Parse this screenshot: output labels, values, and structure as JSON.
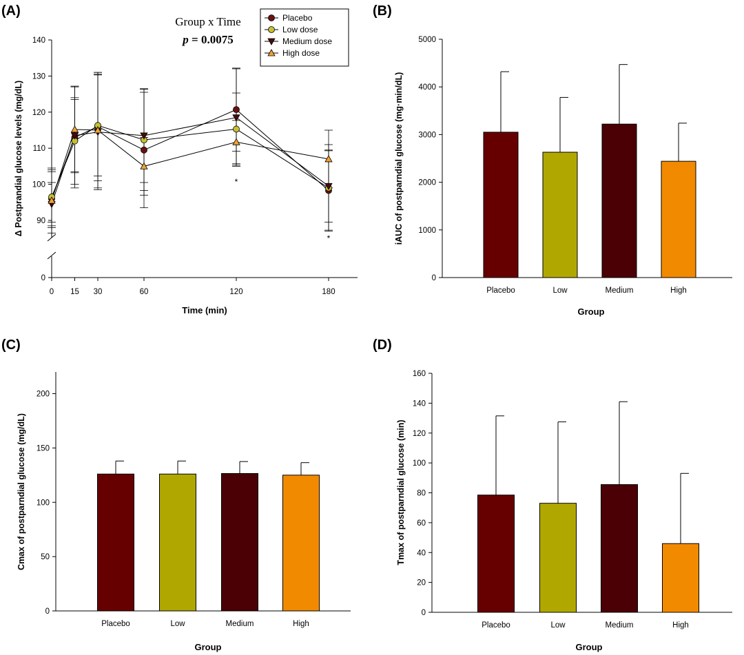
{
  "colors": {
    "placebo": "#660000",
    "low": "#b0a800",
    "medium": "#4a0005",
    "high": "#f28a00",
    "placebo_marker": "#6b1010",
    "low_marker": "#c4c034",
    "medium_marker": "#4a0a0a",
    "high_marker": "#f4a030"
  },
  "chart_data": [
    {
      "id": "A",
      "panel_label": "(A)",
      "type": "line",
      "annotation_line1": "Group x Time",
      "annotation_p": "p",
      "annotation_eq": " = 0.0075",
      "xlabel": "Time (min)",
      "ylabel": "Δ Postprandial glucose levels (mg/dL)",
      "x": [
        0,
        15,
        30,
        60,
        120,
        180
      ],
      "x_tick_labels": [
        "0",
        "15",
        "30",
        "60",
        "120",
        "180"
      ],
      "y_ticks": [
        90,
        100,
        110,
        120,
        130,
        140
      ],
      "y_tick_labels": [
        "90",
        "100",
        "110",
        "120",
        "130",
        "140"
      ],
      "y_break_label": "0",
      "ylim": [
        85,
        140
      ],
      "series": [
        {
          "name": "Placebo",
          "marker": "circle",
          "values": [
            96,
            113,
            116,
            109.5,
            120.7,
            98.3
          ],
          "err": [
            8,
            14,
            15,
            16,
            11.5,
            11
          ]
        },
        {
          "name": "Low dose",
          "marker": "circle",
          "values": [
            96.5,
            112,
            116.3,
            112.3,
            115.3,
            99
          ],
          "err": [
            7,
            12,
            14,
            14,
            10,
            12
          ]
        },
        {
          "name": "Medium dose",
          "marker": "triangle-down",
          "values": [
            94.5,
            113.5,
            114.5,
            113.5,
            118.5,
            99.5
          ],
          "err": [
            6,
            10,
            16,
            13,
            13.5,
            10
          ]
        },
        {
          "name": "High dose",
          "marker": "triangle-up",
          "values": [
            95.5,
            115.2,
            115,
            105,
            111.7,
            107
          ],
          "err": [
            9,
            12,
            16,
            8,
            6,
            8
          ]
        }
      ],
      "significance": [
        {
          "x": 120,
          "label": "*"
        },
        {
          "x": 180,
          "label": "*"
        }
      ]
    },
    {
      "id": "B",
      "panel_label": "(B)",
      "type": "bar",
      "categories": [
        "Placebo",
        "Low",
        "Medium",
        "High"
      ],
      "values": [
        3050,
        2630,
        3220,
        2440
      ],
      "errors": [
        1270,
        1150,
        1250,
        800
      ],
      "xlabel": "Group",
      "ylabel": "iAUC of postparndial glucose (mg·min/dL)",
      "ylim": [
        0,
        5000
      ],
      "y_ticks": [
        0,
        1000,
        2000,
        3000,
        4000,
        5000
      ],
      "y_tick_labels": [
        "0",
        "1000",
        "2000",
        "3000",
        "4000",
        "5000"
      ]
    },
    {
      "id": "C",
      "panel_label": "(C)",
      "type": "bar",
      "categories": [
        "Placebo",
        "Low",
        "Medium",
        "High"
      ],
      "values": [
        126,
        126,
        126.5,
        125
      ],
      "errors": [
        12,
        12,
        11,
        11.5
      ],
      "xlabel": "Group",
      "ylabel": "Cmax of postparndial glucose (mg/dL)",
      "ylim": [
        0,
        220
      ],
      "y_ticks": [
        0,
        50,
        100,
        150,
        200
      ],
      "y_tick_labels": [
        "0",
        "50",
        "100",
        "150",
        "200"
      ]
    },
    {
      "id": "D",
      "panel_label": "(D)",
      "type": "bar",
      "categories": [
        "Placebo",
        "Low",
        "Medium",
        "High"
      ],
      "values": [
        78.5,
        73,
        85.5,
        46
      ],
      "errors": [
        53,
        54.5,
        55.5,
        47
      ],
      "xlabel": "Group",
      "ylabel": "Tmax of postparndial glucose (min)",
      "ylim": [
        0,
        160
      ],
      "y_ticks": [
        0,
        20,
        40,
        60,
        80,
        100,
        120,
        140,
        160
      ],
      "y_tick_labels": [
        "0",
        "20",
        "40",
        "60",
        "80",
        "100",
        "120",
        "140",
        "160"
      ]
    }
  ]
}
